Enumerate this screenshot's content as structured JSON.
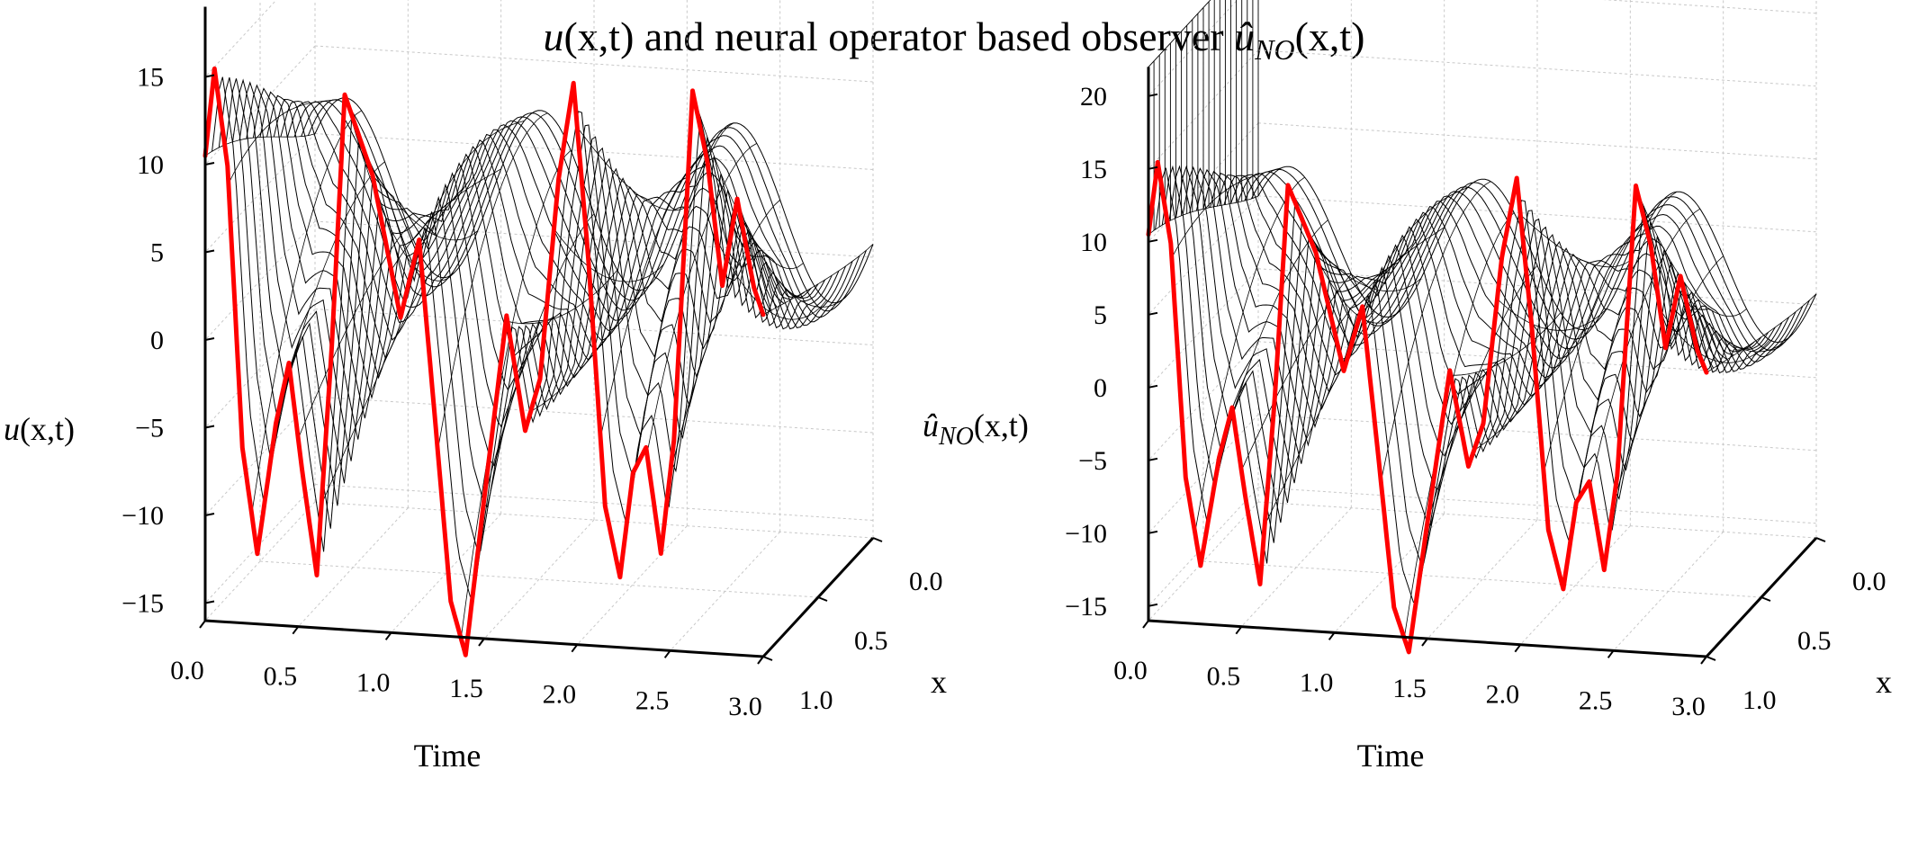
{
  "title": {
    "lead": "u",
    "lead_args": "(x,t)",
    "middle": " and neural operator based observer ",
    "hat_symbol": "û",
    "hat_sub": "NO",
    "hat_args": "(x,t)"
  },
  "chart_data": [
    {
      "type": "surface3d",
      "zlabel": {
        "symbol": "u",
        "sub": "",
        "args": "(x,t)"
      },
      "xlabel": "Time",
      "ylabel": "x",
      "time_ticks": [
        "0.0",
        "0.5",
        "1.0",
        "1.5",
        "2.0",
        "2.5",
        "3.0"
      ],
      "x_ticks": [
        "0.0",
        "0.5",
        "1.0"
      ],
      "z_ticks": [
        "15",
        "10",
        "5",
        "0",
        "−5",
        "−10",
        "−15"
      ],
      "z_tick_values": [
        15,
        10,
        5,
        0,
        -5,
        -10,
        -15
      ],
      "time_range": [
        0,
        3
      ],
      "x_range": [
        0,
        1
      ],
      "z_range": [
        -16,
        19
      ],
      "surface_color": "#000000",
      "boundary_curve_color": "#ff0000",
      "boundary_curve": {
        "t": [
          0.0,
          0.05,
          0.12,
          0.2,
          0.28,
          0.38,
          0.45,
          0.52,
          0.6,
          0.68,
          0.75,
          0.9,
          1.05,
          1.15,
          1.23,
          1.32,
          1.4,
          1.5,
          1.62,
          1.72,
          1.8,
          1.9,
          1.98,
          2.06,
          2.15,
          2.23,
          2.3,
          2.37,
          2.45,
          2.52,
          2.62,
          2.7,
          2.78,
          2.86,
          2.95,
          3.0
        ],
        "u": [
          10.5,
          15.5,
          10,
          -6,
          -12,
          -4.5,
          -1,
          -7,
          -13,
          0,
          14.5,
          10,
          2,
          6.5,
          -3,
          -14,
          -17,
          -8,
          2.5,
          -4,
          -1,
          10.5,
          16,
          6,
          -8,
          -12,
          -6,
          -4.5,
          -10.5,
          -4,
          16,
          12,
          5,
          10,
          5,
          3.5
        ]
      }
    },
    {
      "type": "surface3d",
      "zlabel": {
        "symbol": "û",
        "sub": "NO",
        "args": "(x,t)"
      },
      "xlabel": "Time",
      "ylabel": "x",
      "time_ticks": [
        "0.0",
        "0.5",
        "1.0",
        "1.5",
        "2.0",
        "2.5",
        "3.0"
      ],
      "x_ticks": [
        "0.0",
        "0.5",
        "1.0"
      ],
      "z_ticks": [
        "20",
        "15",
        "10",
        "5",
        "0",
        "−5",
        "−10",
        "−15"
      ],
      "z_tick_values": [
        20,
        15,
        10,
        5,
        0,
        -5,
        -10,
        -15
      ],
      "time_range": [
        0,
        3
      ],
      "x_range": [
        0,
        1
      ],
      "z_range": [
        -16,
        22
      ],
      "surface_color": "#000000",
      "boundary_curve_color": "#ff0000",
      "boundary_curve": {
        "t": [
          0.0,
          0.05,
          0.12,
          0.2,
          0.28,
          0.38,
          0.45,
          0.52,
          0.6,
          0.68,
          0.75,
          0.9,
          1.05,
          1.15,
          1.23,
          1.32,
          1.4,
          1.5,
          1.62,
          1.72,
          1.8,
          1.9,
          1.98,
          2.06,
          2.15,
          2.23,
          2.3,
          2.37,
          2.45,
          2.52,
          2.62,
          2.7,
          2.78,
          2.86,
          2.95,
          3.0
        ],
        "u": [
          10.5,
          15.5,
          10,
          -6,
          -12,
          -4.5,
          -1,
          -7,
          -13,
          0,
          14.5,
          10,
          2,
          6.5,
          -3,
          -14,
          -17,
          -8,
          2.5,
          -4,
          -1,
          10.5,
          16,
          6,
          -8,
          -12,
          -6,
          -4.5,
          -10.5,
          -4,
          16,
          12,
          5,
          10,
          5,
          3.5
        ]
      },
      "initial_spike": {
        "t": 0.0,
        "u_top": 22
      }
    }
  ]
}
